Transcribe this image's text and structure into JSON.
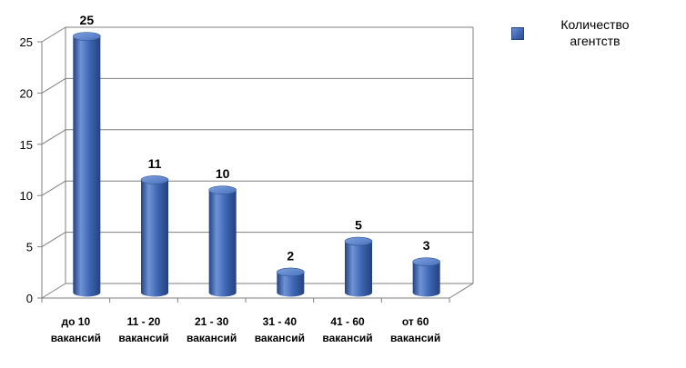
{
  "legend": {
    "series_name_line1": "Количество",
    "series_name_line2": "агентств"
  },
  "colors": {
    "bar_light": "#6f93d6",
    "bar_mid": "#3f67b3",
    "bar_dark": "#23427f",
    "grid": "#7f7f7f"
  },
  "chart_data": {
    "type": "bar",
    "categories": [
      [
        "до 10",
        "вакансий"
      ],
      [
        "11 - 20",
        "вакансий"
      ],
      [
        "21 - 30",
        "вакансий"
      ],
      [
        "31 - 40",
        "вакансий"
      ],
      [
        "41 - 60",
        "вакансий"
      ],
      [
        "от 60",
        "вакансий"
      ]
    ],
    "series": [
      {
        "name": "Количество агентств",
        "values": [
          25,
          11,
          10,
          2,
          5,
          3
        ]
      }
    ],
    "yticks": [
      0,
      5,
      10,
      15,
      20,
      25
    ],
    "ylim": [
      0,
      25
    ],
    "grid": true,
    "legend_position": "top-right",
    "title": "",
    "xlabel": "",
    "ylabel": ""
  }
}
